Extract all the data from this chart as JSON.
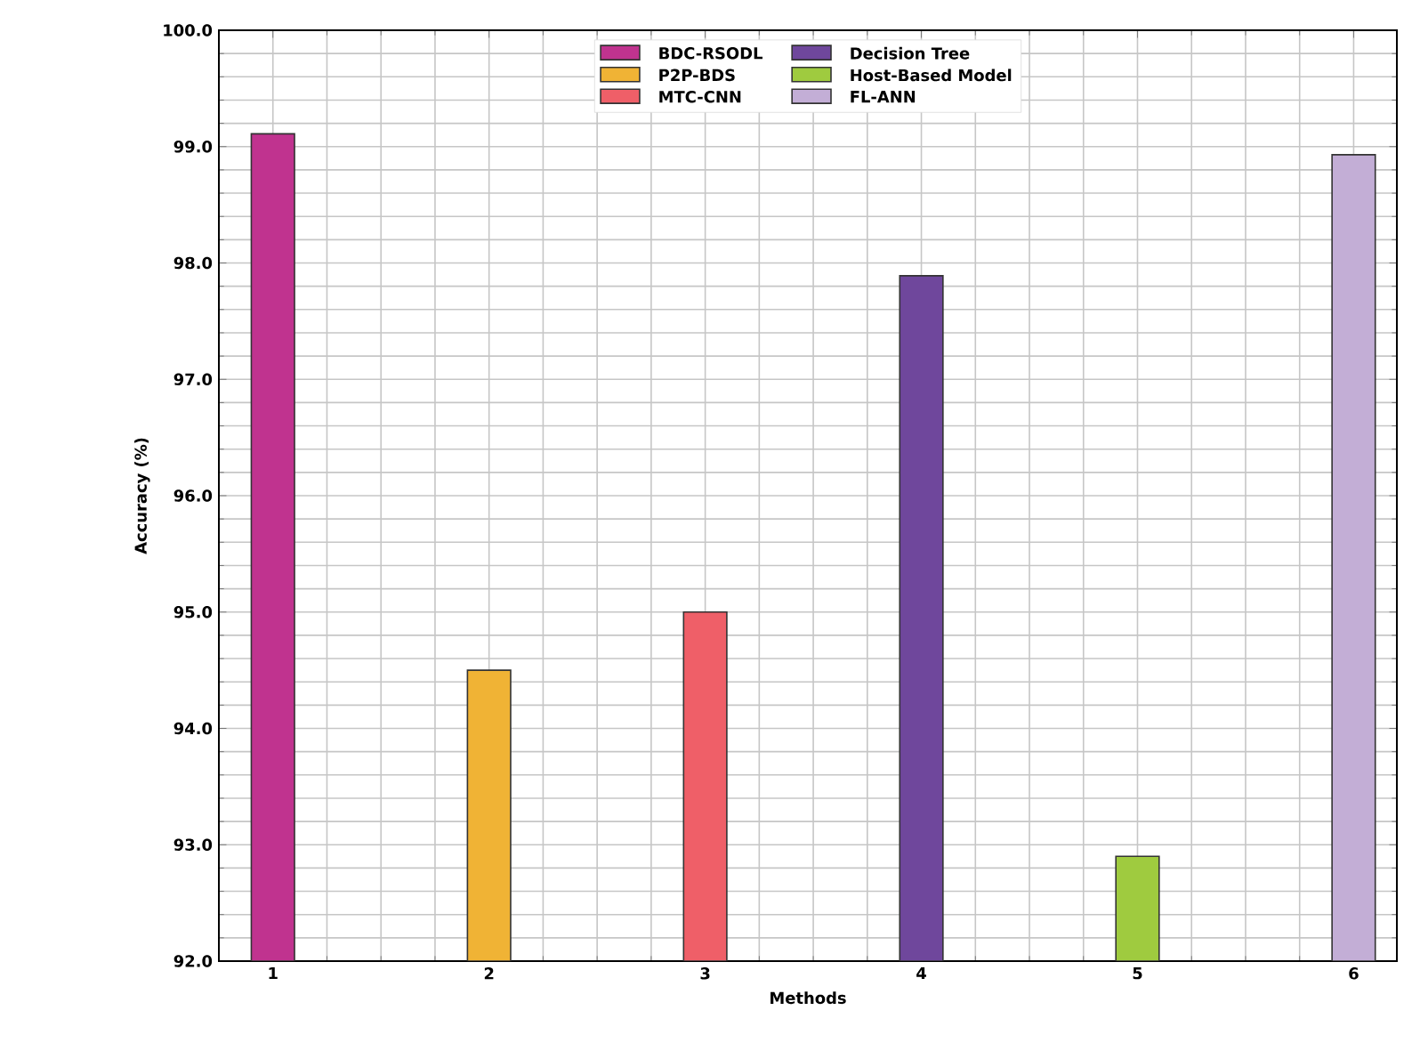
{
  "chart_data": {
    "type": "bar",
    "xlabel": "Methods",
    "ylabel": "Accuracy (%)",
    "series": [
      {
        "name": "BDC-RSODL",
        "color": "#c0338f",
        "x": [
          1
        ],
        "values": [
          99.11
        ]
      },
      {
        "name": "P2P-BDS",
        "color": "#f0b335",
        "x": [
          2
        ],
        "values": [
          94.5
        ]
      },
      {
        "name": "MTC-CNN",
        "color": "#ef5f68",
        "x": [
          3
        ],
        "values": [
          95.0
        ]
      },
      {
        "name": "Decision Tree",
        "color": "#6f479c",
        "x": [
          4
        ],
        "values": [
          97.89
        ]
      },
      {
        "name": "Host-Based Model",
        "color": "#9fcb3f",
        "x": [
          5
        ],
        "values": [
          92.9
        ]
      },
      {
        "name": "FL-ANN",
        "color": "#c3aed6",
        "x": [
          6
        ],
        "values": [
          98.93
        ]
      }
    ],
    "xlim": [
      0.75,
      6.2
    ],
    "xticks": [
      1,
      2,
      3,
      4,
      5,
      6
    ],
    "ylim": [
      92,
      100
    ],
    "yticks": [
      {
        "value": 92,
        "label": "92.0"
      },
      {
        "value": 93,
        "label": "93.0"
      },
      {
        "value": 94,
        "label": "94.0"
      },
      {
        "value": 95,
        "label": "95.0"
      },
      {
        "value": 96,
        "label": "96.0"
      },
      {
        "value": 97,
        "label": "97.0"
      },
      {
        "value": 98,
        "label": "98.0"
      },
      {
        "value": 99,
        "label": "99.0"
      },
      {
        "value": 100,
        "label": "100.0"
      }
    ],
    "grid": true,
    "legend": "top"
  }
}
